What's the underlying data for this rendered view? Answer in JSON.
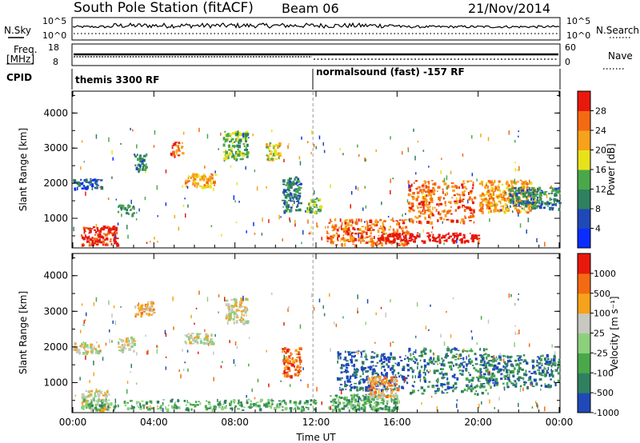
{
  "header": {
    "station": "South Pole Station (fitACF)",
    "beam": "Beam 06",
    "date": "21/Nov/2014"
  },
  "top_panels": {
    "nsky_label": "N.Sky",
    "nsky_ticks": [
      "10^5",
      "10^0"
    ],
    "nsearch_label": "N.Search",
    "nsearch_ticks": [
      "10^5",
      "10^0"
    ],
    "freq_label": "Freq.",
    "freq_unit": "[MHz]",
    "freq_ticks": [
      "18",
      "8"
    ],
    "nave_label": "Nave",
    "nave_ticks": [
      "60",
      "0"
    ],
    "cpid_label": "CPID",
    "cpid_segments": [
      "themis 3300 RF",
      "normalsound (fast) -157 RF"
    ]
  },
  "chart_data": [
    {
      "type": "heatmap",
      "panel": "power",
      "ylabel": "Slant Range [km]",
      "ylim": [
        180,
        4600
      ],
      "yticks": [
        "1000",
        "2000",
        "3000",
        "4000"
      ],
      "xlabel": "",
      "xticks": [
        "00:00",
        "04:00",
        "08:00",
        "12:00",
        "16:00",
        "20:00",
        "00:00"
      ],
      "xlim_hours": [
        0,
        24
      ],
      "colorbar": {
        "label": "Power [dB]",
        "ticks": [
          "4",
          "8",
          "12",
          "16",
          "20",
          "24",
          "28"
        ],
        "colors": [
          "#0a2dff",
          "#1f49b8",
          "#2f8060",
          "#4aa84a",
          "#e8e21a",
          "#f7a21b",
          "#f46a12",
          "#e8190c"
        ]
      },
      "echo_regions": [
        {
          "t": [
            0.0,
            1.4
          ],
          "r": [
            1850,
            2150
          ],
          "level": 1
        },
        {
          "t": [
            0.4,
            2.2
          ],
          "r": [
            250,
            800
          ],
          "level": 7
        },
        {
          "t": [
            2.2,
            3.0
          ],
          "r": [
            1100,
            1400
          ],
          "level": 2
        },
        {
          "t": [
            3.0,
            3.6
          ],
          "r": [
            2350,
            2850
          ],
          "level": 2
        },
        {
          "t": [
            4.8,
            5.4
          ],
          "r": [
            2800,
            3200
          ],
          "level": 6
        },
        {
          "t": [
            5.5,
            7.0
          ],
          "r": [
            1900,
            2300
          ],
          "level": 5
        },
        {
          "t": [
            7.4,
            8.6
          ],
          "r": [
            2700,
            3500
          ],
          "level": 3
        },
        {
          "t": [
            9.5,
            10.2
          ],
          "r": [
            2700,
            3200
          ],
          "level": 4
        },
        {
          "t": [
            10.3,
            11.2
          ],
          "r": [
            1200,
            2200
          ],
          "level": 2
        },
        {
          "t": [
            11.5,
            12.2
          ],
          "r": [
            1200,
            1600
          ],
          "level": 3
        },
        {
          "t": [
            12.5,
            16.5
          ],
          "r": [
            250,
            1000
          ],
          "level": 6
        },
        {
          "t": [
            15.0,
            20.0
          ],
          "r": [
            350,
            600
          ],
          "level": 8
        },
        {
          "t": [
            16.5,
            19.8
          ],
          "r": [
            900,
            2100
          ],
          "level": 6
        },
        {
          "t": [
            20.0,
            22.8
          ],
          "r": [
            1200,
            2100
          ],
          "level": 5
        },
        {
          "t": [
            21.5,
            24.0
          ],
          "r": [
            1300,
            1900
          ],
          "level": 2
        }
      ]
    },
    {
      "type": "heatmap",
      "panel": "velocity",
      "ylabel": "Slant Range [km]",
      "ylim": [
        180,
        4600
      ],
      "yticks": [
        "1000",
        "2000",
        "3000",
        "4000"
      ],
      "xlabel": "Time UT",
      "xticks": [
        "00:00",
        "04:00",
        "08:00",
        "12:00",
        "16:00",
        "20:00",
        "00:00"
      ],
      "xlim_hours": [
        0,
        24
      ],
      "colorbar": {
        "label": "Velocity [m s⁻¹]",
        "ticks": [
          "1000",
          "500",
          "100",
          "25",
          "-25",
          "-100",
          "-500",
          "-1000"
        ],
        "colors": [
          "#1f49b8",
          "#2f8060",
          "#4aa84a",
          "#8cd07e",
          "#c8c8c0",
          "#f7a21b",
          "#f46a12",
          "#e8190c"
        ]
      },
      "echo_regions": [
        {
          "t": [
            0.0,
            1.4
          ],
          "r": [
            1850,
            2150
          ],
          "level": 4
        },
        {
          "t": [
            0.4,
            1.8
          ],
          "r": [
            250,
            800
          ],
          "level": 4
        },
        {
          "t": [
            2.2,
            3.0
          ],
          "r": [
            1900,
            2300
          ],
          "level": 4
        },
        {
          "t": [
            3.0,
            4.0
          ],
          "r": [
            2900,
            3300
          ],
          "level": 5
        },
        {
          "t": [
            5.5,
            7.0
          ],
          "r": [
            2100,
            2400
          ],
          "level": 4
        },
        {
          "t": [
            7.5,
            8.6
          ],
          "r": [
            2700,
            3400
          ],
          "level": 4
        },
        {
          "t": [
            10.3,
            11.2
          ],
          "r": [
            1200,
            2000
          ],
          "level": 6
        },
        {
          "t": [
            0.5,
            12.0
          ],
          "r": [
            250,
            550
          ],
          "level": 2
        },
        {
          "t": [
            12.5,
            16.0
          ],
          "r": [
            250,
            700
          ],
          "level": 2
        },
        {
          "t": [
            13.0,
            16.5
          ],
          "r": [
            800,
            1900
          ],
          "level": 0
        },
        {
          "t": [
            14.5,
            16.0
          ],
          "r": [
            600,
            1200
          ],
          "level": 5
        },
        {
          "t": [
            16.5,
            20.5
          ],
          "r": [
            700,
            2000
          ],
          "level": 1
        },
        {
          "t": [
            20.0,
            24.0
          ],
          "r": [
            900,
            1800
          ],
          "level": 1
        }
      ]
    }
  ]
}
